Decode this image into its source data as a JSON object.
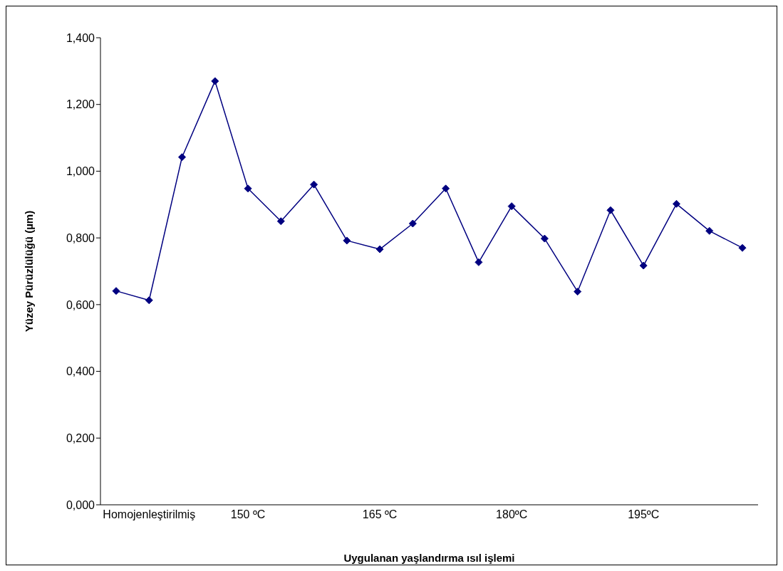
{
  "chart_data": {
    "type": "line",
    "xlabel": "Uygulanan yaşlandırma ısıl işlemi",
    "ylabel": "Yüzey Pürüzlülüğü (µm)",
    "categories": [
      null,
      "Homojenleştirilmiş",
      null,
      null,
      "150 ºC",
      null,
      null,
      null,
      "165 ºC",
      null,
      null,
      null,
      "180ºC",
      null,
      null,
      null,
      "195ºC",
      null,
      null,
      null
    ],
    "series": [
      {
        "color": "#000080",
        "values": [
          0.641,
          0.613,
          1.042,
          1.27,
          0.948,
          0.85,
          0.96,
          0.792,
          0.766,
          0.843,
          0.948,
          0.727,
          0.895,
          0.798,
          0.639,
          0.883,
          0.717,
          0.902,
          0.821,
          0.77
        ]
      }
    ],
    "ylim": [
      0,
      1.4
    ],
    "yticks": [
      {
        "value": 0,
        "label": "0,000"
      },
      {
        "value": 0.2,
        "label": "0,200"
      },
      {
        "value": 0.4,
        "label": "0,400"
      },
      {
        "value": 0.6,
        "label": "0,600"
      },
      {
        "value": 0.8,
        "label": "0,800"
      },
      {
        "value": 1,
        "label": "1,000"
      },
      {
        "value": 1.2,
        "label": "1,200"
      },
      {
        "value": 1.4,
        "label": "1,400"
      }
    ],
    "grid": false,
    "legend": false,
    "marker": "diamond",
    "line_style": "solid"
  }
}
